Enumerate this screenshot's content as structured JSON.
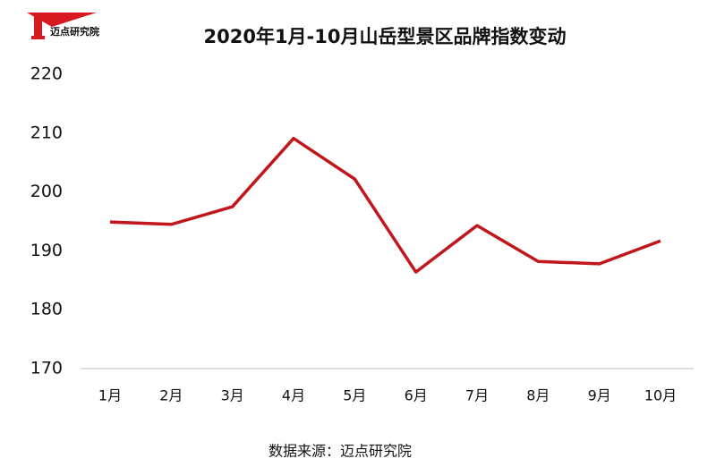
{
  "logo": "迈点研究院",
  "source": "数据来源：迈点研究院",
  "chart_data": {
    "type": "line",
    "title": "2020年1月-10月山岳型景区品牌指数变动",
    "categories": [
      "1月",
      "2月",
      "3月",
      "4月",
      "5月",
      "6月",
      "7月",
      "8月",
      "9月",
      "10月"
    ],
    "series": [
      {
        "name": "品牌指数",
        "color": "#c0161c",
        "values": [
          194.9,
          194.5,
          197.5,
          209.1,
          202.2,
          186.4,
          194.3,
          188.2,
          187.8,
          191.7
        ]
      }
    ],
    "ylim": [
      170,
      220
    ],
    "yticks": [
      170,
      180,
      190,
      200,
      210,
      220
    ],
    "grid": false
  }
}
